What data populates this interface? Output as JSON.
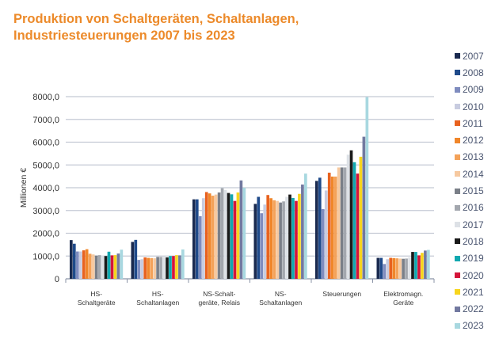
{
  "title": {
    "line1": "Produktion von Schaltgeräten, Schaltanlagen,",
    "line2": "Industriesteuerungen 2007 bis 2023"
  },
  "chart_data": {
    "type": "bar",
    "title": "Produktion von Schaltgeräten, Schaltanlagen, Industriesteuerungen 2007 bis 2023",
    "ylabel": "Millionen €",
    "xlabel": "",
    "ylim": [
      0,
      8000
    ],
    "yticks": [
      "0",
      "1000,0",
      "2000,0",
      "3000,0",
      "4000,0",
      "5000,0",
      "6000,0",
      "7000,0",
      "8000,0"
    ],
    "grid": true,
    "legend": "right",
    "categories": [
      [
        "HS-",
        "Schaltgeräte"
      ],
      [
        "HS-",
        "Schaltanlagen"
      ],
      [
        "NS-Schalt-",
        "geräte, Relais"
      ],
      [
        "NS-",
        "Schaltanlagen"
      ],
      [
        "Steuerungen"
      ],
      [
        "Elektromagn.",
        "Geräte"
      ]
    ],
    "series": [
      {
        "name": "2007",
        "color": "#1a2a4f",
        "values": [
          1700,
          1620,
          3490,
          3290,
          4300,
          920
        ]
      },
      {
        "name": "2008",
        "color": "#1f4a8a",
        "values": [
          1540,
          1710,
          3490,
          3600,
          4440,
          920
        ]
      },
      {
        "name": "2009",
        "color": "#7f8cbf",
        "values": [
          1200,
          830,
          2750,
          2880,
          3060,
          650
        ]
      },
      {
        "name": "2010",
        "color": "#c8cce0",
        "values": [
          1200,
          860,
          3540,
          3260,
          3880,
          860
        ]
      },
      {
        "name": "2011",
        "color": "#e8621f",
        "values": [
          1250,
          940,
          3810,
          3680,
          4660,
          920
        ]
      },
      {
        "name": "2012",
        "color": "#f0862a",
        "values": [
          1300,
          920,
          3750,
          3540,
          4490,
          910
        ]
      },
      {
        "name": "2013",
        "color": "#f4a259",
        "values": [
          1100,
          910,
          3650,
          3450,
          4490,
          900
        ]
      },
      {
        "name": "2014",
        "color": "#f6c9a0",
        "values": [
          1070,
          900,
          3700,
          3420,
          4890,
          890
        ]
      },
      {
        "name": "2015",
        "color": "#7a7f88",
        "values": [
          1020,
          960,
          3790,
          3350,
          4890,
          880
        ]
      },
      {
        "name": "2016",
        "color": "#a3a7ae",
        "values": [
          1040,
          960,
          3980,
          3400,
          4890,
          890
        ]
      },
      {
        "name": "2017",
        "color": "#dde1e6",
        "values": [
          1020,
          960,
          3900,
          3600,
          5450,
          940
        ]
      },
      {
        "name": "2018",
        "color": "#1a1a1a",
        "values": [
          1000,
          940,
          3770,
          3700,
          5640,
          1180
        ]
      },
      {
        "name": "2019",
        "color": "#10a8b0",
        "values": [
          1190,
          1000,
          3710,
          3550,
          5120,
          1180
        ]
      },
      {
        "name": "2020",
        "color": "#d4153a",
        "values": [
          1030,
          1000,
          3420,
          3420,
          4620,
          1030
        ]
      },
      {
        "name": "2021",
        "color": "#f7d51d",
        "values": [
          1040,
          1040,
          3790,
          3730,
          5360,
          1140
        ]
      },
      {
        "name": "2022",
        "color": "#7279a0",
        "values": [
          1110,
          1030,
          4320,
          4140,
          6240,
          1240
        ]
      },
      {
        "name": "2023",
        "color": "#a8d8e0",
        "values": [
          1280,
          1290,
          4000,
          4620,
          7980,
          1270
        ]
      }
    ]
  }
}
